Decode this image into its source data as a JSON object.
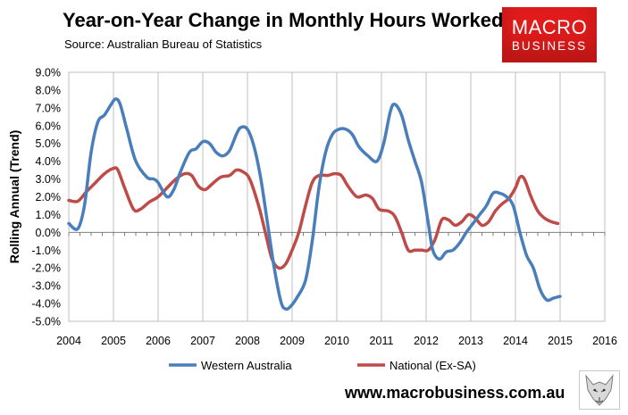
{
  "header": {
    "title": "Year-on-Year Change in Monthly Hours Worked",
    "source": "Source: Australian Bureau of Statistics"
  },
  "logo": {
    "line1": "MACRO",
    "line2": "BUSINESS"
  },
  "footer": {
    "url": "www.macrobusiness.com.au"
  },
  "colors": {
    "wa": "#4a7ebb",
    "national": "#be4b48",
    "logo_red": "#e11b1b"
  },
  "chart_data": {
    "type": "line",
    "title": "Year-on-Year Change in Monthly Hours Worked",
    "xlabel": "",
    "ylabel": "Rolling Annual (Trend)",
    "ylim": [
      -5,
      9
    ],
    "xlim": [
      2004,
      2016
    ],
    "ytick_labels": [
      "9.0%",
      "8.0%",
      "7.0%",
      "6.0%",
      "5.0%",
      "4.0%",
      "3.0%",
      "2.0%",
      "1.0%",
      "0.0%",
      "-1.0%",
      "-2.0%",
      "-3.0%",
      "-4.0%",
      "-5.0%"
    ],
    "xtick_labels": [
      "2004",
      "2005",
      "2006",
      "2007",
      "2008",
      "2009",
      "2010",
      "2011",
      "2012",
      "2013",
      "2014",
      "2015",
      "2016"
    ],
    "grid": true,
    "legend": "bottom",
    "series": [
      {
        "name": "Western Australia",
        "points": [
          [
            2004.0,
            0.5
          ],
          [
            2004.2,
            0.2
          ],
          [
            2004.35,
            1.5
          ],
          [
            2004.5,
            4.5
          ],
          [
            2004.65,
            6.2
          ],
          [
            2004.8,
            6.6
          ],
          [
            2004.95,
            7.2
          ],
          [
            2005.05,
            7.5
          ],
          [
            2005.15,
            7.2
          ],
          [
            2005.3,
            5.8
          ],
          [
            2005.5,
            4.0
          ],
          [
            2005.75,
            3.1
          ],
          [
            2005.9,
            3.0
          ],
          [
            2006.0,
            2.8
          ],
          [
            2006.2,
            2.0
          ],
          [
            2006.35,
            2.4
          ],
          [
            2006.5,
            3.4
          ],
          [
            2006.7,
            4.5
          ],
          [
            2006.85,
            4.7
          ],
          [
            2007.0,
            5.1
          ],
          [
            2007.15,
            5.0
          ],
          [
            2007.3,
            4.5
          ],
          [
            2007.45,
            4.3
          ],
          [
            2007.6,
            4.6
          ],
          [
            2007.75,
            5.5
          ],
          [
            2007.85,
            5.9
          ],
          [
            2008.0,
            5.8
          ],
          [
            2008.15,
            4.8
          ],
          [
            2008.3,
            3.0
          ],
          [
            2008.45,
            0.5
          ],
          [
            2008.6,
            -2.0
          ],
          [
            2008.75,
            -3.9
          ],
          [
            2008.85,
            -4.3
          ],
          [
            2008.95,
            -4.2
          ],
          [
            2009.1,
            -3.7
          ],
          [
            2009.3,
            -2.7
          ],
          [
            2009.45,
            -0.5
          ],
          [
            2009.6,
            2.5
          ],
          [
            2009.75,
            4.5
          ],
          [
            2009.9,
            5.5
          ],
          [
            2010.05,
            5.8
          ],
          [
            2010.2,
            5.8
          ],
          [
            2010.35,
            5.5
          ],
          [
            2010.5,
            4.8
          ],
          [
            2010.7,
            4.3
          ],
          [
            2010.9,
            4.0
          ],
          [
            2011.05,
            5.0
          ],
          [
            2011.2,
            6.8
          ],
          [
            2011.3,
            7.2
          ],
          [
            2011.45,
            6.6
          ],
          [
            2011.6,
            5.2
          ],
          [
            2011.75,
            4.0
          ],
          [
            2011.9,
            2.8
          ],
          [
            2012.05,
            0.5
          ],
          [
            2012.15,
            -1.0
          ],
          [
            2012.3,
            -1.5
          ],
          [
            2012.45,
            -1.1
          ],
          [
            2012.6,
            -1.0
          ],
          [
            2012.75,
            -0.6
          ],
          [
            2012.9,
            0.0
          ],
          [
            2013.05,
            0.5
          ],
          [
            2013.2,
            1.0
          ],
          [
            2013.35,
            1.5
          ],
          [
            2013.5,
            2.2
          ],
          [
            2013.65,
            2.2
          ],
          [
            2013.8,
            2.0
          ],
          [
            2013.95,
            1.5
          ],
          [
            2014.1,
            0.0
          ],
          [
            2014.25,
            -1.3
          ],
          [
            2014.4,
            -2.0
          ],
          [
            2014.55,
            -3.2
          ],
          [
            2014.7,
            -3.8
          ],
          [
            2014.85,
            -3.7
          ],
          [
            2015.0,
            -3.6
          ]
        ]
      },
      {
        "name": "National (Ex-SA)",
        "points": [
          [
            2004.0,
            1.8
          ],
          [
            2004.2,
            1.75
          ],
          [
            2004.4,
            2.3
          ],
          [
            2004.6,
            2.8
          ],
          [
            2004.8,
            3.3
          ],
          [
            2005.0,
            3.6
          ],
          [
            2005.1,
            3.5
          ],
          [
            2005.25,
            2.5
          ],
          [
            2005.45,
            1.3
          ],
          [
            2005.6,
            1.3
          ],
          [
            2005.8,
            1.7
          ],
          [
            2006.0,
            2.0
          ],
          [
            2006.2,
            2.5
          ],
          [
            2006.4,
            3.0
          ],
          [
            2006.6,
            3.3
          ],
          [
            2006.75,
            3.2
          ],
          [
            2006.9,
            2.6
          ],
          [
            2007.05,
            2.4
          ],
          [
            2007.2,
            2.7
          ],
          [
            2007.4,
            3.1
          ],
          [
            2007.6,
            3.2
          ],
          [
            2007.75,
            3.5
          ],
          [
            2007.9,
            3.4
          ],
          [
            2008.05,
            3.0
          ],
          [
            2008.25,
            1.5
          ],
          [
            2008.4,
            0.0
          ],
          [
            2008.55,
            -1.5
          ],
          [
            2008.7,
            -2.0
          ],
          [
            2008.85,
            -1.8
          ],
          [
            2009.0,
            -1.0
          ],
          [
            2009.15,
            0.0
          ],
          [
            2009.3,
            1.5
          ],
          [
            2009.45,
            2.8
          ],
          [
            2009.6,
            3.2
          ],
          [
            2009.8,
            3.2
          ],
          [
            2009.95,
            3.3
          ],
          [
            2010.1,
            3.2
          ],
          [
            2010.25,
            2.6
          ],
          [
            2010.45,
            2.0
          ],
          [
            2010.65,
            2.1
          ],
          [
            2010.8,
            1.9
          ],
          [
            2010.95,
            1.3
          ],
          [
            2011.15,
            1.2
          ],
          [
            2011.3,
            0.9
          ],
          [
            2011.45,
            0.0
          ],
          [
            2011.6,
            -1.0
          ],
          [
            2011.75,
            -1.0
          ],
          [
            2011.9,
            -1.0
          ],
          [
            2012.05,
            -1.0
          ],
          [
            2012.2,
            -0.4
          ],
          [
            2012.35,
            0.7
          ],
          [
            2012.5,
            0.7
          ],
          [
            2012.65,
            0.4
          ],
          [
            2012.8,
            0.6
          ],
          [
            2012.95,
            1.0
          ],
          [
            2013.1,
            0.8
          ],
          [
            2013.25,
            0.4
          ],
          [
            2013.4,
            0.6
          ],
          [
            2013.55,
            1.2
          ],
          [
            2013.7,
            1.6
          ],
          [
            2013.85,
            1.9
          ],
          [
            2014.0,
            2.5
          ],
          [
            2014.1,
            3.1
          ],
          [
            2014.2,
            3.0
          ],
          [
            2014.35,
            2.0
          ],
          [
            2014.5,
            1.2
          ],
          [
            2014.65,
            0.8
          ],
          [
            2014.8,
            0.6
          ],
          [
            2014.95,
            0.5
          ]
        ]
      }
    ]
  }
}
